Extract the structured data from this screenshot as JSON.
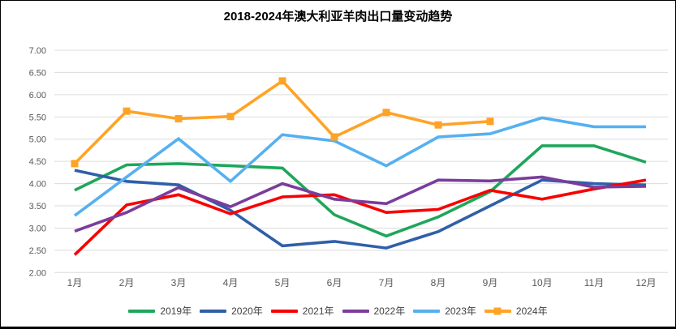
{
  "title": "2018-2024年澳大利亚羊肉出口量变动趋势",
  "chart_data": {
    "type": "line",
    "title": "2018-2024年澳大利亚羊肉出口量变动趋势",
    "categories": [
      "1月",
      "2月",
      "3月",
      "4月",
      "5月",
      "6月",
      "7月",
      "8月",
      "9月",
      "10月",
      "11月",
      "12月"
    ],
    "series": [
      {
        "name": "2019年",
        "color": "#1FA65C",
        "marker": "none",
        "values": [
          3.85,
          4.42,
          4.45,
          4.4,
          4.35,
          3.3,
          2.82,
          3.25,
          3.82,
          4.85,
          4.85,
          4.48
        ]
      },
      {
        "name": "2020年",
        "color": "#2F5FA8",
        "marker": "none",
        "values": [
          4.3,
          4.05,
          3.97,
          3.4,
          2.6,
          2.7,
          2.55,
          2.92,
          3.5,
          4.08,
          4.0,
          3.97
        ]
      },
      {
        "name": "2021年",
        "color": "#F90000",
        "marker": "none",
        "values": [
          2.4,
          3.52,
          3.75,
          3.32,
          3.7,
          3.75,
          3.35,
          3.42,
          3.85,
          3.65,
          3.88,
          4.08
        ]
      },
      {
        "name": "2022年",
        "color": "#7A3D9C",
        "marker": "none",
        "values": [
          2.93,
          3.35,
          3.91,
          3.48,
          4.0,
          3.65,
          3.55,
          4.08,
          4.06,
          4.15,
          3.92,
          3.94
        ]
      },
      {
        "name": "2023年",
        "color": "#55B0F0",
        "marker": "none",
        "values": [
          3.28,
          4.15,
          5.01,
          4.05,
          5.1,
          4.96,
          4.4,
          5.05,
          5.12,
          5.48,
          5.28,
          5.28
        ]
      },
      {
        "name": "2024年",
        "color": "#FFA326",
        "marker": "square",
        "values": [
          4.45,
          5.63,
          5.46,
          5.51,
          6.31,
          5.05,
          5.6,
          5.32,
          5.4,
          null,
          null,
          null
        ]
      }
    ],
    "xlabel": "",
    "ylabel": "",
    "ylim": [
      2.0,
      7.0
    ],
    "ytick_step": 0.5,
    "ytick_decimals": 2,
    "grid": "horizontal-only",
    "legend_position": "bottom",
    "styles": {
      "gridline_color": "#DCDCDC",
      "tick_label_color": "#595959",
      "line_width": 3.6,
      "marker_size": 9
    }
  }
}
